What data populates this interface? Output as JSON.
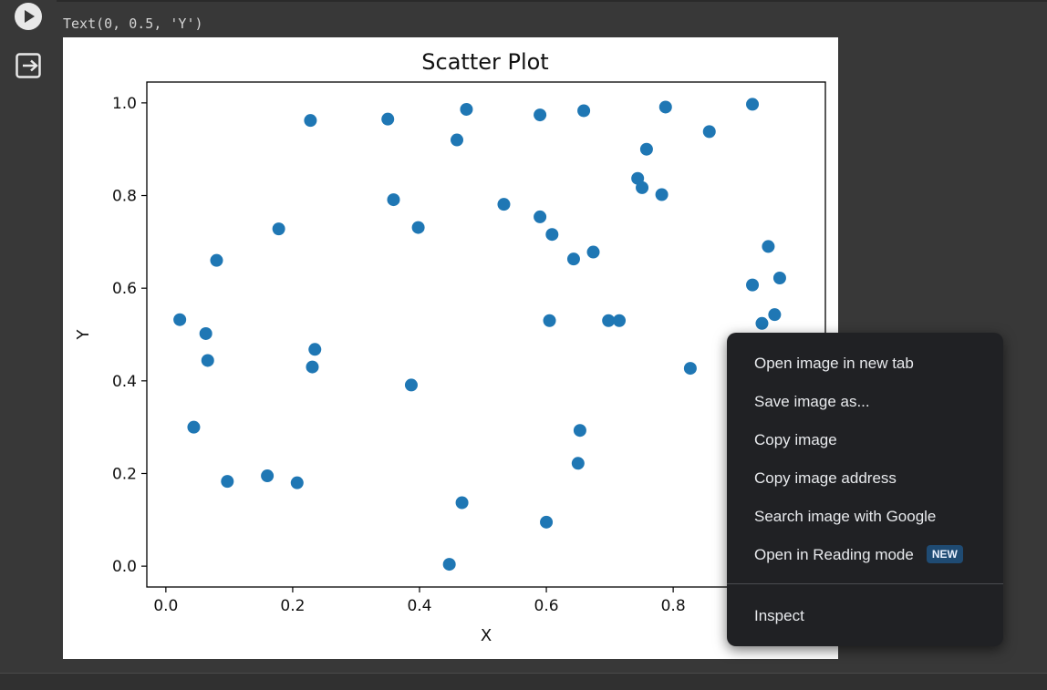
{
  "cell": {
    "run_icon": "play-circle-icon",
    "output_icon": "output-toggle-icon",
    "output_text": "Text(0, 0.5, 'Y')"
  },
  "chart_data": {
    "type": "scatter",
    "title": "Scatter Plot",
    "xlabel": "X",
    "ylabel": "Y",
    "xlim": [
      -0.03,
      1.04
    ],
    "ylim": [
      -0.045,
      1.045
    ],
    "xticks": [
      "0.0",
      "0.2",
      "0.4",
      "0.6",
      "0.8"
    ],
    "yticks": [
      "0.0",
      "0.2",
      "0.4",
      "0.6",
      "0.8",
      "1.0"
    ],
    "grid": false,
    "marker_color": "#1f77b4",
    "points": [
      [
        0.022,
        0.532
      ],
      [
        0.063,
        0.502
      ],
      [
        0.066,
        0.444
      ],
      [
        0.08,
        0.66
      ],
      [
        0.044,
        0.3
      ],
      [
        0.097,
        0.183
      ],
      [
        0.16,
        0.195
      ],
      [
        0.178,
        0.728
      ],
      [
        0.207,
        0.18
      ],
      [
        0.228,
        0.962
      ],
      [
        0.231,
        0.43
      ],
      [
        0.235,
        0.468
      ],
      [
        0.35,
        0.965
      ],
      [
        0.359,
        0.791
      ],
      [
        0.387,
        0.391
      ],
      [
        0.398,
        0.731
      ],
      [
        0.447,
        0.004
      ],
      [
        0.459,
        0.92
      ],
      [
        0.467,
        0.137
      ],
      [
        0.474,
        0.986
      ],
      [
        0.533,
        0.781
      ],
      [
        0.59,
        0.754
      ],
      [
        0.59,
        0.974
      ],
      [
        0.6,
        0.095
      ],
      [
        0.605,
        0.53
      ],
      [
        0.609,
        0.716
      ],
      [
        0.643,
        0.663
      ],
      [
        0.65,
        0.222
      ],
      [
        0.653,
        0.293
      ],
      [
        0.659,
        0.983
      ],
      [
        0.674,
        0.678
      ],
      [
        0.698,
        0.53
      ],
      [
        0.715,
        0.53
      ],
      [
        0.744,
        0.837
      ],
      [
        0.751,
        0.817
      ],
      [
        0.758,
        0.9
      ],
      [
        0.782,
        0.802
      ],
      [
        0.788,
        0.991
      ],
      [
        0.827,
        0.427
      ],
      [
        0.857,
        0.938
      ],
      [
        0.925,
        0.997
      ],
      [
        0.925,
        0.607
      ],
      [
        0.94,
        0.524
      ],
      [
        0.95,
        0.69
      ],
      [
        0.96,
        0.543
      ],
      [
        0.968,
        0.622
      ]
    ]
  },
  "context_menu": {
    "items": [
      "Open image in new tab",
      "Save image as...",
      "Copy image",
      "Copy image address",
      "Search image with Google",
      "Open in Reading mode"
    ],
    "badge": "NEW",
    "inspect": "Inspect"
  }
}
